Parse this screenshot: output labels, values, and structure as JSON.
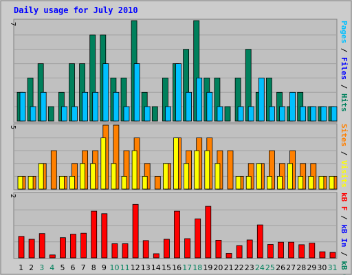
{
  "chart_data": [
    {
      "panel": "hits-files-pages",
      "type": "bar",
      "title": "Daily usage for July 2010",
      "categories": [
        "1",
        "2",
        "3",
        "4",
        "5",
        "6",
        "7",
        "8",
        "9",
        "10",
        "11",
        "12",
        "13",
        "14",
        "15",
        "16",
        "17",
        "18",
        "19",
        "20",
        "21",
        "22",
        "23",
        "24",
        "25",
        "26",
        "27",
        "28",
        "29",
        "30",
        "31"
      ],
      "weekend_days": [
        3,
        4,
        10,
        11,
        17,
        18,
        24,
        25,
        31
      ],
      "ymax_label": "7",
      "ylim": [
        0,
        7
      ],
      "legend": [
        "Pages",
        "Files",
        "Hits"
      ],
      "series": [
        {
          "name": "Hits",
          "values": [
            2,
            3,
            4,
            1,
            2,
            4,
            4,
            6,
            6,
            3,
            3,
            7,
            2,
            1,
            3,
            4,
            5,
            7,
            3,
            3,
            1,
            3,
            5,
            2,
            3,
            2,
            1,
            2,
            1,
            1,
            1
          ]
        },
        {
          "name": "Files",
          "values": [
            2,
            1,
            2,
            0,
            1,
            1,
            2,
            2,
            4,
            2,
            1,
            4,
            1,
            0,
            1,
            4,
            2,
            3,
            2,
            1,
            0,
            1,
            1,
            3,
            1,
            1,
            2,
            1,
            1,
            1,
            1
          ]
        },
        {
          "name": "Pages",
          "values": [
            0,
            0,
            0,
            0,
            0,
            0,
            0,
            0,
            0,
            0,
            0,
            0,
            0,
            0,
            0,
            0,
            0,
            0,
            0,
            0,
            0,
            0,
            0,
            0,
            0,
            0,
            0,
            0,
            0,
            0,
            0
          ]
        }
      ]
    },
    {
      "panel": "visits-sites",
      "type": "bar",
      "ymax_label": "5",
      "ylim": [
        0,
        5
      ],
      "legend": [
        "Sites",
        "Visits"
      ],
      "series": [
        {
          "name": "Sites",
          "values": [
            1,
            1,
            2,
            3,
            1,
            2,
            3,
            3,
            5,
            5,
            3,
            4,
            2,
            1,
            2,
            4,
            3,
            4,
            4,
            3,
            3,
            1,
            2,
            2,
            3,
            2,
            3,
            2,
            2,
            1,
            1
          ]
        },
        {
          "name": "Visits",
          "values": [
            1,
            1,
            2,
            0,
            1,
            1,
            2,
            2,
            4,
            2,
            1,
            3,
            1,
            0,
            2,
            4,
            2,
            3,
            3,
            2,
            0,
            1,
            1,
            2,
            1,
            1,
            2,
            1,
            1,
            1,
            1
          ]
        }
      ]
    },
    {
      "panel": "kb",
      "type": "bar",
      "ymax_label": "2",
      "ylim": [
        0,
        2
      ],
      "legend": [
        "kB F",
        "kB In",
        "kB Out"
      ],
      "series": [
        {
          "name": "kB F",
          "values": [
            0.67,
            0.58,
            0.76,
            0.09,
            0.63,
            0.74,
            0.77,
            1.46,
            1.38,
            0.44,
            0.44,
            1.67,
            0.54,
            0.13,
            0.58,
            1.46,
            0.6,
            1.22,
            1.61,
            0.55,
            0.14,
            0.38,
            0.56,
            1.03,
            0.42,
            0.49,
            0.49,
            0.41,
            0.46,
            0.19,
            0.17
          ]
        }
      ]
    }
  ],
  "colors": {
    "frame_bg": "#cccccc",
    "plot_bg": "#c0c0c0",
    "title": "#0000ff",
    "hits": "#00805c",
    "files": "#00c0ff",
    "pages": "#00c0ff",
    "sites": "#ff8000",
    "visits": "#ffff00",
    "kb": "#ff0000",
    "kb_in": "#0000ff",
    "kb_out": "#00805c",
    "weekend_label": "#00805c",
    "weekday_label": "#000000",
    "separator": "#000000"
  }
}
